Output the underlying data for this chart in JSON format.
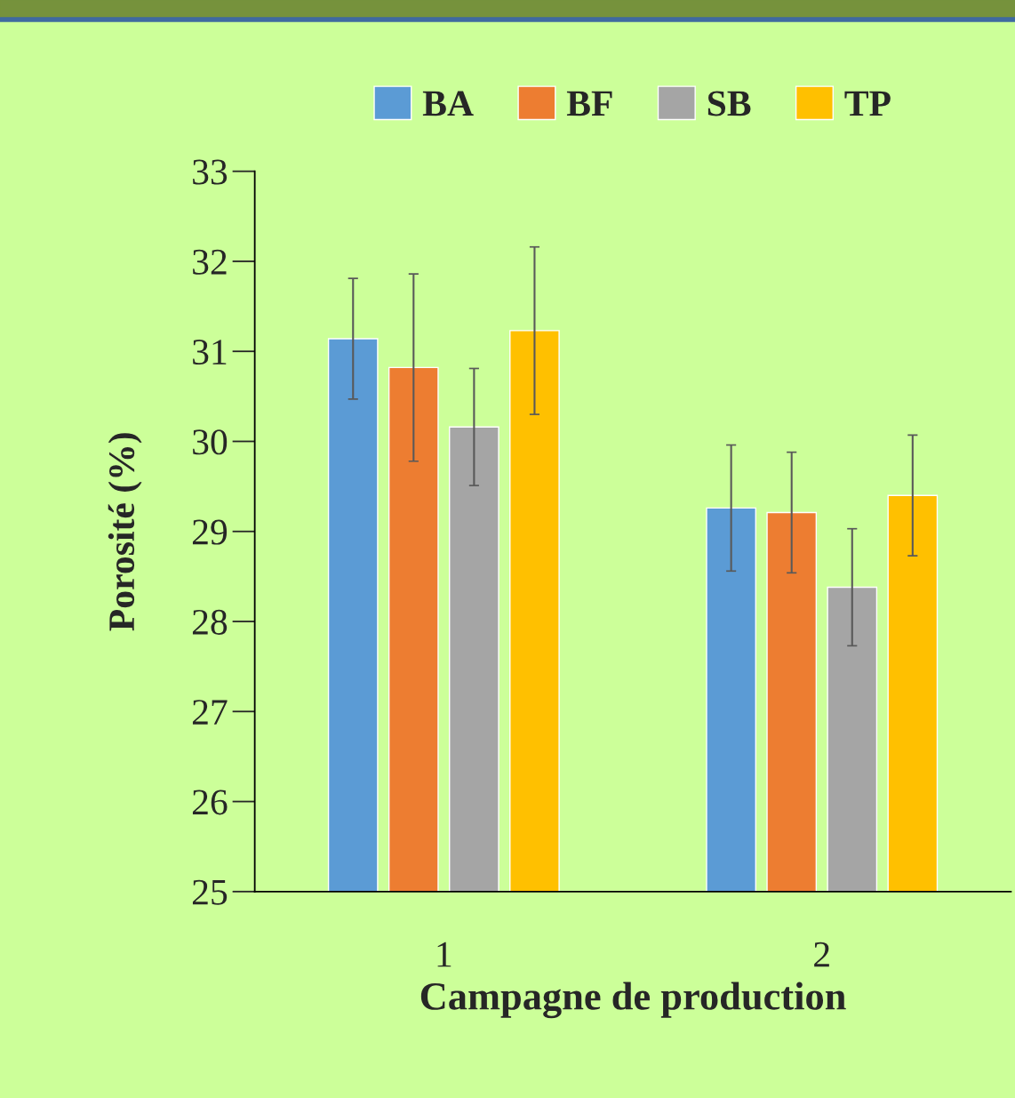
{
  "chart_data": {
    "type": "bar",
    "xlabel": "Campagne de production",
    "ylabel": "Porosité (%)",
    "categories": [
      "1",
      "2"
    ],
    "series": [
      {
        "name": "BA",
        "color": "#5b9bd5",
        "values": [
          31.14,
          29.26
        ],
        "errors": [
          0.67,
          0.7
        ]
      },
      {
        "name": "BF",
        "color": "#ed7d31",
        "values": [
          30.82,
          29.21
        ],
        "errors": [
          1.04,
          0.67
        ]
      },
      {
        "name": "SB",
        "color": "#a5a5a5",
        "values": [
          30.16,
          28.38
        ],
        "errors": [
          0.65,
          0.65
        ]
      },
      {
        "name": "TP",
        "color": "#ffc000",
        "values": [
          31.23,
          29.4
        ],
        "errors": [
          0.93,
          0.67
        ]
      }
    ],
    "ylim": [
      25,
      33
    ],
    "yticks": [
      25,
      26,
      27,
      28,
      29,
      30,
      31,
      32,
      33
    ],
    "grid": false,
    "legend": "top"
  }
}
